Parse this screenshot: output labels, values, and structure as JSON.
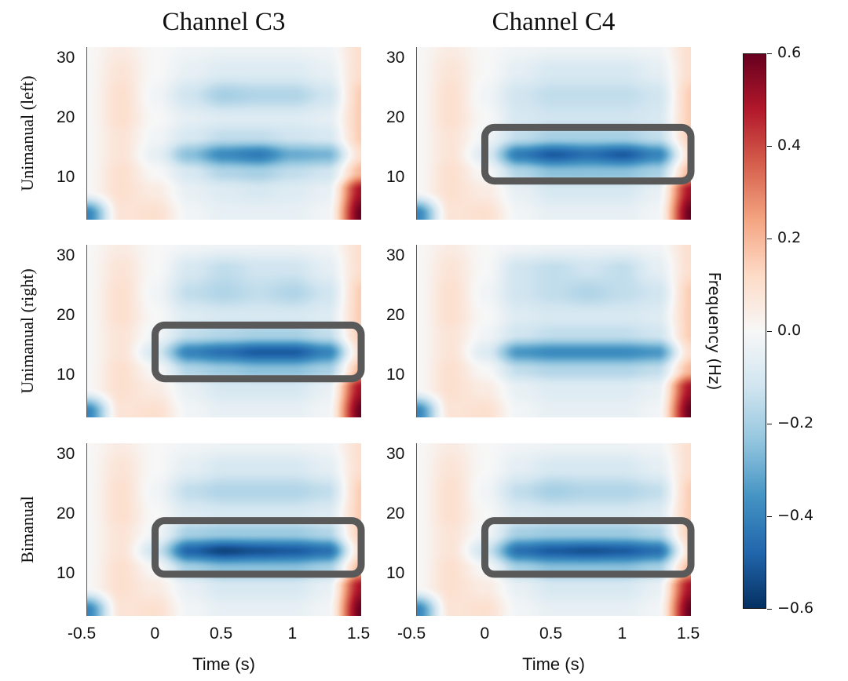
{
  "chart_data": {
    "type": "heatmap",
    "columns": [
      "Channel C3",
      "Channel C4"
    ],
    "rows": [
      "Unimanual (left)",
      "Unimanual (right)",
      "Bimanual"
    ],
    "xlabel": "Time (s)",
    "colorbar_label": "Frequency (Hz)",
    "xlim": [
      -0.5,
      1.5
    ],
    "ylim": [
      3,
      32
    ],
    "x_ticks": [
      {
        "value": -0.5,
        "label": "-0.5"
      },
      {
        "value": 0,
        "label": "0"
      },
      {
        "value": 0.5,
        "label": "0.5"
      },
      {
        "value": 1,
        "label": "1"
      },
      {
        "value": 1.5,
        "label": "1.5"
      }
    ],
    "y_ticks": [
      {
        "value": 30,
        "label": "30"
      },
      {
        "value": 20,
        "label": "20"
      },
      {
        "value": 10,
        "label": "10"
      }
    ],
    "colorbar": {
      "range": [
        -0.6,
        0.6
      ],
      "colormap": "RdBu_r",
      "ticks": [
        {
          "value": 0.6,
          "label": "0.6"
        },
        {
          "value": 0.4,
          "label": "0.4"
        },
        {
          "value": 0.2,
          "label": "0.2"
        },
        {
          "value": 0.0,
          "label": "0.0"
        },
        {
          "value": -0.2,
          "label": "−0.2"
        },
        {
          "value": -0.4,
          "label": "−0.4"
        },
        {
          "value": -0.6,
          "label": "−0.6"
        }
      ]
    },
    "box_color": "#595959",
    "times": [
      -0.5,
      -0.25,
      0,
      0.25,
      0.5,
      0.75,
      1.0,
      1.25,
      1.5
    ],
    "freqs": [
      4,
      8,
      11,
      14,
      17,
      20,
      24,
      28,
      32
    ],
    "panels": [
      {
        "row": 0,
        "column": 0,
        "box": null,
        "values": [
          [
            -0.4,
            0.08,
            0.1,
            -0.02,
            -0.05,
            -0.05,
            -0.05,
            -0.02,
            0.6
          ],
          [
            0.0,
            0.1,
            0.05,
            -0.05,
            -0.08,
            -0.1,
            -0.08,
            -0.05,
            0.5
          ],
          [
            0.0,
            0.1,
            0.0,
            -0.1,
            -0.18,
            -0.2,
            -0.15,
            -0.12,
            0.2
          ],
          [
            0.0,
            0.08,
            -0.05,
            -0.25,
            -0.38,
            -0.42,
            -0.3,
            -0.28,
            0.1
          ],
          [
            0.0,
            0.08,
            -0.02,
            -0.1,
            -0.15,
            -0.15,
            -0.12,
            -0.1,
            0.15
          ],
          [
            0.0,
            0.1,
            0.0,
            -0.06,
            -0.08,
            -0.08,
            -0.08,
            -0.06,
            0.15
          ],
          [
            0.0,
            0.1,
            -0.02,
            -0.12,
            -0.2,
            -0.18,
            -0.18,
            -0.12,
            0.15
          ],
          [
            0.0,
            0.08,
            0.0,
            -0.05,
            -0.08,
            -0.08,
            -0.08,
            -0.05,
            0.1
          ],
          [
            0.0,
            0.05,
            0.0,
            -0.02,
            -0.03,
            -0.03,
            -0.03,
            -0.02,
            0.1
          ]
        ]
      },
      {
        "row": 0,
        "column": 1,
        "box": {
          "time": [
            0,
            1.5
          ],
          "freq": [
            9.5,
            18.5
          ]
        },
        "values": [
          [
            -0.4,
            0.08,
            0.1,
            -0.02,
            -0.05,
            -0.05,
            -0.05,
            -0.02,
            0.6
          ],
          [
            0.0,
            0.1,
            0.05,
            -0.05,
            -0.1,
            -0.1,
            -0.1,
            -0.05,
            0.5
          ],
          [
            0.0,
            0.1,
            0.0,
            -0.18,
            -0.25,
            -0.25,
            -0.25,
            -0.2,
            0.2
          ],
          [
            0.0,
            0.08,
            -0.08,
            -0.42,
            -0.5,
            -0.45,
            -0.5,
            -0.4,
            0.1
          ],
          [
            0.0,
            0.08,
            -0.02,
            -0.15,
            -0.2,
            -0.2,
            -0.2,
            -0.15,
            0.15
          ],
          [
            0.0,
            0.1,
            0.0,
            -0.1,
            -0.12,
            -0.12,
            -0.12,
            -0.1,
            0.15
          ],
          [
            0.0,
            0.1,
            -0.02,
            -0.12,
            -0.15,
            -0.15,
            -0.15,
            -0.12,
            0.15
          ],
          [
            0.0,
            0.08,
            0.0,
            -0.06,
            -0.1,
            -0.1,
            -0.1,
            -0.06,
            0.1
          ],
          [
            0.0,
            0.05,
            0.0,
            -0.02,
            -0.03,
            -0.03,
            -0.03,
            -0.02,
            0.1
          ]
        ]
      },
      {
        "row": 1,
        "column": 0,
        "box": {
          "time": [
            0,
            1.5
          ],
          "freq": [
            9.5,
            18.5
          ]
        },
        "values": [
          [
            -0.4,
            0.08,
            0.1,
            -0.02,
            -0.05,
            -0.05,
            -0.05,
            -0.02,
            0.6
          ],
          [
            0.0,
            0.1,
            0.05,
            -0.05,
            -0.1,
            -0.1,
            -0.1,
            -0.05,
            0.5
          ],
          [
            0.0,
            0.1,
            0.0,
            -0.18,
            -0.22,
            -0.25,
            -0.25,
            -0.2,
            0.2
          ],
          [
            0.0,
            0.08,
            -0.1,
            -0.4,
            -0.45,
            -0.5,
            -0.5,
            -0.4,
            0.1
          ],
          [
            0.0,
            0.08,
            -0.02,
            -0.15,
            -0.18,
            -0.2,
            -0.2,
            -0.15,
            0.15
          ],
          [
            0.0,
            0.1,
            0.0,
            -0.08,
            -0.1,
            -0.1,
            -0.1,
            -0.08,
            0.15
          ],
          [
            0.0,
            0.1,
            -0.02,
            -0.15,
            -0.18,
            -0.15,
            -0.18,
            -0.12,
            0.15
          ],
          [
            0.0,
            0.08,
            0.0,
            -0.1,
            -0.15,
            -0.12,
            -0.12,
            -0.06,
            0.1
          ],
          [
            0.0,
            0.05,
            0.0,
            -0.02,
            -0.03,
            -0.03,
            -0.03,
            -0.02,
            0.1
          ]
        ]
      },
      {
        "row": 1,
        "column": 1,
        "box": null,
        "values": [
          [
            -0.4,
            0.08,
            0.1,
            -0.02,
            -0.05,
            -0.05,
            -0.05,
            -0.02,
            0.6
          ],
          [
            0.0,
            0.1,
            0.05,
            -0.05,
            -0.08,
            -0.08,
            -0.08,
            -0.05,
            0.5
          ],
          [
            0.0,
            0.1,
            0.0,
            -0.15,
            -0.18,
            -0.18,
            -0.18,
            -0.15,
            0.2
          ],
          [
            0.0,
            0.08,
            -0.08,
            -0.35,
            -0.38,
            -0.38,
            -0.38,
            -0.35,
            0.1
          ],
          [
            0.0,
            0.08,
            -0.02,
            -0.12,
            -0.15,
            -0.15,
            -0.15,
            -0.12,
            0.15
          ],
          [
            0.0,
            0.1,
            0.0,
            -0.08,
            -0.1,
            -0.1,
            -0.1,
            -0.08,
            0.15
          ],
          [
            0.0,
            0.1,
            -0.02,
            -0.12,
            -0.15,
            -0.18,
            -0.15,
            -0.12,
            0.15
          ],
          [
            0.0,
            0.08,
            0.0,
            -0.12,
            -0.15,
            -0.12,
            -0.15,
            -0.06,
            0.1
          ],
          [
            0.0,
            0.05,
            0.0,
            -0.02,
            -0.03,
            -0.03,
            -0.03,
            -0.02,
            0.1
          ]
        ]
      },
      {
        "row": 2,
        "column": 0,
        "box": {
          "time": [
            0,
            1.5
          ],
          "freq": [
            10,
            19
          ]
        },
        "values": [
          [
            -0.4,
            0.08,
            0.1,
            -0.02,
            -0.05,
            -0.05,
            -0.05,
            -0.02,
            0.6
          ],
          [
            0.0,
            0.1,
            0.05,
            -0.05,
            -0.1,
            -0.1,
            -0.1,
            -0.05,
            0.5
          ],
          [
            0.0,
            0.1,
            0.0,
            -0.2,
            -0.25,
            -0.25,
            -0.25,
            -0.2,
            0.2
          ],
          [
            0.0,
            0.08,
            -0.12,
            -0.48,
            -0.55,
            -0.52,
            -0.5,
            -0.45,
            0.1
          ],
          [
            0.0,
            0.08,
            -0.02,
            -0.2,
            -0.22,
            -0.22,
            -0.22,
            -0.18,
            0.15
          ],
          [
            0.0,
            0.1,
            0.0,
            -0.08,
            -0.1,
            -0.1,
            -0.1,
            -0.08,
            0.15
          ],
          [
            0.0,
            0.1,
            -0.02,
            -0.15,
            -0.18,
            -0.18,
            -0.18,
            -0.15,
            0.15
          ],
          [
            0.0,
            0.08,
            0.0,
            -0.06,
            -0.1,
            -0.1,
            -0.1,
            -0.06,
            0.1
          ],
          [
            0.0,
            0.05,
            0.0,
            -0.02,
            -0.03,
            -0.03,
            -0.03,
            -0.02,
            0.1
          ]
        ]
      },
      {
        "row": 2,
        "column": 1,
        "box": {
          "time": [
            0,
            1.5
          ],
          "freq": [
            10,
            19
          ]
        },
        "values": [
          [
            -0.4,
            0.08,
            0.1,
            -0.02,
            -0.05,
            -0.05,
            -0.05,
            -0.02,
            0.6
          ],
          [
            0.0,
            0.1,
            0.05,
            -0.05,
            -0.1,
            -0.1,
            -0.1,
            -0.05,
            0.5
          ],
          [
            0.0,
            0.1,
            0.0,
            -0.2,
            -0.25,
            -0.25,
            -0.25,
            -0.2,
            0.2
          ],
          [
            0.0,
            0.08,
            -0.12,
            -0.45,
            -0.5,
            -0.52,
            -0.5,
            -0.45,
            0.1
          ],
          [
            0.0,
            0.08,
            -0.02,
            -0.2,
            -0.22,
            -0.22,
            -0.22,
            -0.18,
            0.15
          ],
          [
            0.0,
            0.1,
            0.0,
            -0.08,
            -0.1,
            -0.1,
            -0.1,
            -0.08,
            0.15
          ],
          [
            0.0,
            0.1,
            -0.02,
            -0.15,
            -0.2,
            -0.18,
            -0.18,
            -0.15,
            0.15
          ],
          [
            0.0,
            0.08,
            0.0,
            -0.06,
            -0.1,
            -0.1,
            -0.1,
            -0.06,
            0.1
          ],
          [
            0.0,
            0.05,
            0.0,
            -0.02,
            -0.03,
            -0.03,
            -0.03,
            -0.02,
            0.1
          ]
        ]
      }
    ]
  }
}
